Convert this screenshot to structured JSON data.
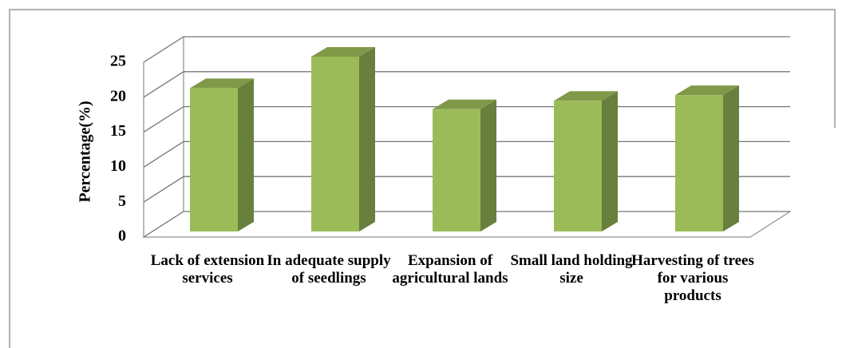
{
  "chart_data": {
    "type": "bar3d",
    "ylabel": "Percentage(%)",
    "categories": [
      "Lack of extension services",
      "In adequate supply of seedlings",
      "Expansion of agricultural lands",
      "Small land holding size",
      "Harvesting of trees for various products"
    ],
    "values": [
      20.5,
      25,
      17.5,
      18.7,
      19.5
    ],
    "color": "#9bbb59",
    "ylim": [
      0,
      25
    ],
    "yticks": [
      0,
      5,
      10,
      15,
      20,
      25
    ],
    "grid": true
  }
}
